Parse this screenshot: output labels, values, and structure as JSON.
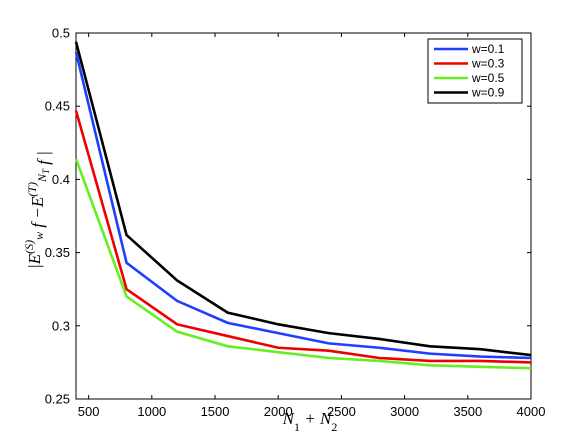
{
  "chart_data": {
    "type": "line",
    "title": "",
    "xlabel": "N_1 + N_2",
    "ylabel": "|E_w^(S) f - E_{N_T}^(T) f|",
    "xlim": [
      400,
      4000
    ],
    "ylim": [
      0.25,
      0.5
    ],
    "xticks": [
      500,
      1000,
      1500,
      2000,
      2500,
      3000,
      3500,
      4000
    ],
    "yticks": [
      0.25,
      0.3,
      0.35,
      0.4,
      0.45,
      0.5
    ],
    "xtick_labels": [
      "500",
      "1000",
      "1500",
      "2000",
      "2500",
      "3000",
      "3500",
      "4000"
    ],
    "ytick_labels": [
      "0.25",
      "0.3",
      "0.35",
      "0.4",
      "0.45",
      "0.5"
    ],
    "grid": false,
    "legend_position": "top-right",
    "x": [
      400,
      800,
      1200,
      1600,
      2000,
      2400,
      2800,
      3200,
      3600,
      4000
    ],
    "series": [
      {
        "name": "w=0.1",
        "color": "#1f3fff",
        "values": [
          0.487,
          0.343,
          0.317,
          0.302,
          0.295,
          0.288,
          0.285,
          0.281,
          0.279,
          0.278
        ]
      },
      {
        "name": "w=0.3",
        "color": "#ee0000",
        "values": [
          0.447,
          0.325,
          0.301,
          0.293,
          0.285,
          0.283,
          0.278,
          0.276,
          0.276,
          0.275
        ]
      },
      {
        "name": "w=0.5",
        "color": "#66ee22",
        "values": [
          0.414,
          0.32,
          0.296,
          0.286,
          0.282,
          0.278,
          0.276,
          0.273,
          0.272,
          0.271
        ]
      },
      {
        "name": "w=0.9",
        "color": "#000000",
        "values": [
          0.494,
          0.362,
          0.331,
          0.309,
          0.301,
          0.295,
          0.291,
          0.286,
          0.284,
          0.28
        ]
      }
    ]
  }
}
